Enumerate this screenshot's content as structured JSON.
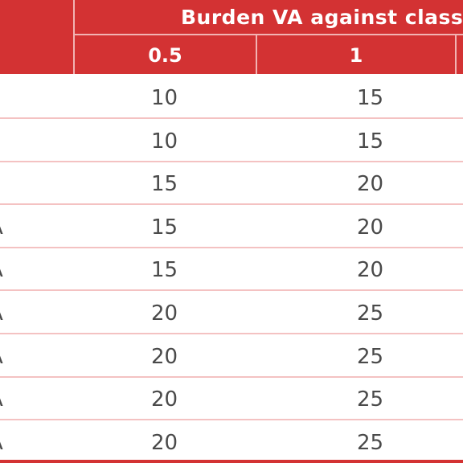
{
  "table": {
    "group_header": "Burden VA against class",
    "columns": [
      "0.5",
      "1"
    ],
    "rows": [
      {
        "label": "",
        "values": [
          "10",
          "15"
        ]
      },
      {
        "label": "",
        "values": [
          "10",
          "15"
        ]
      },
      {
        "label": "",
        "values": [
          "15",
          "20"
        ]
      },
      {
        "label": "A",
        "values": [
          "15",
          "20"
        ]
      },
      {
        "label": "A",
        "values": [
          "15",
          "20"
        ]
      },
      {
        "label": "A",
        "values": [
          "20",
          "25"
        ]
      },
      {
        "label": "A",
        "values": [
          "20",
          "25"
        ]
      },
      {
        "label": "A",
        "values": [
          "20",
          "25"
        ]
      },
      {
        "label": "A",
        "values": [
          "20",
          "25"
        ]
      }
    ]
  },
  "colors": {
    "header_bg": "#d33233",
    "row_rule": "#f4c2c2",
    "text": "#4a4a4a"
  }
}
